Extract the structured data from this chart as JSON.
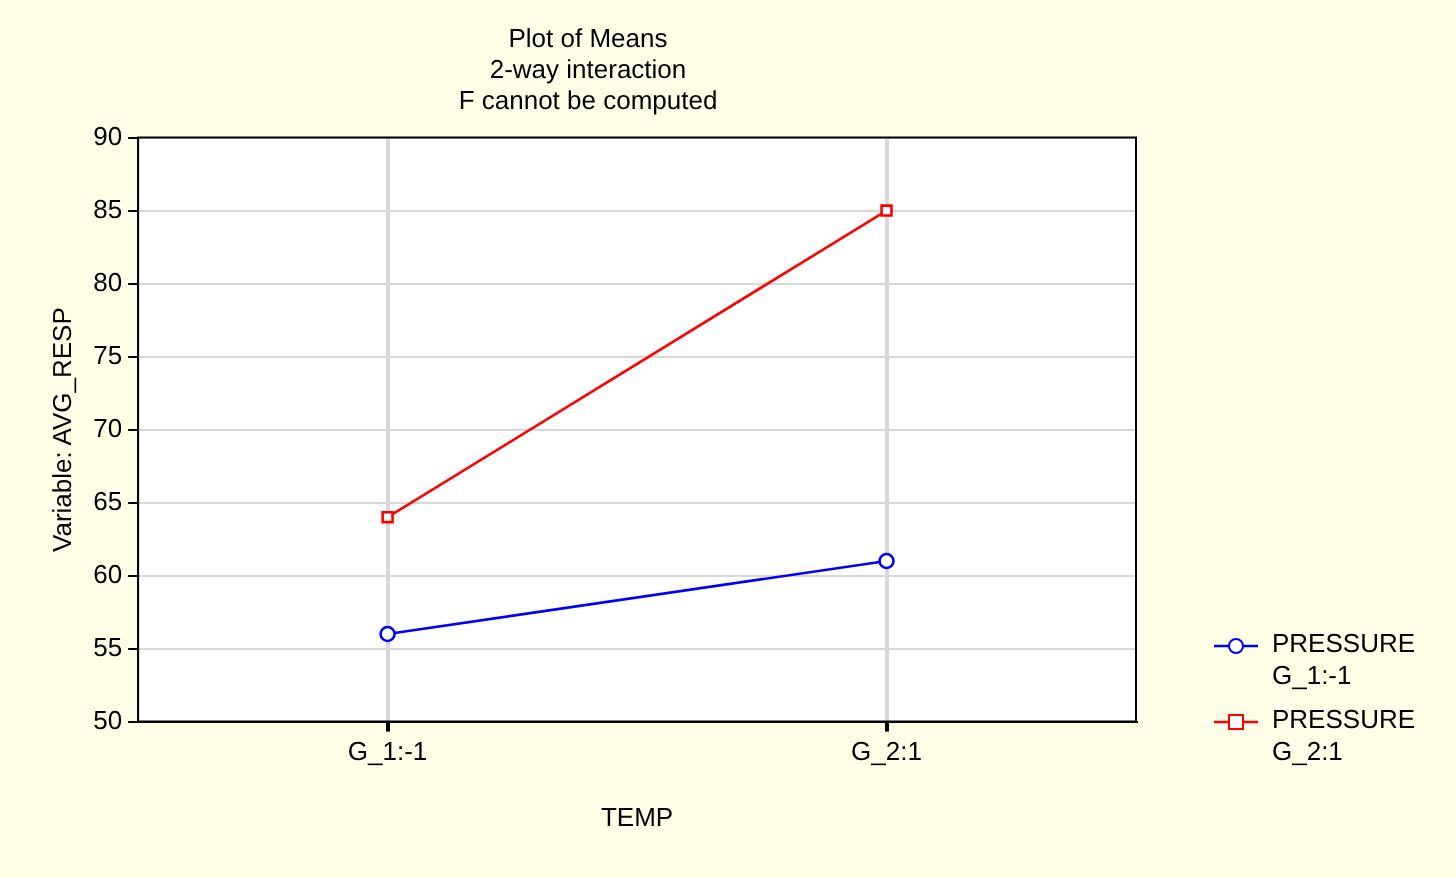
{
  "chart_data": {
    "type": "line",
    "title": "Plot of Means",
    "subtitle": "2-way interaction",
    "annotations": [
      "F cannot be computed"
    ],
    "xlabel": "TEMP",
    "ylabel": "Variable: AVG_RESP",
    "categories": [
      "G_1:-1",
      "G_2:1"
    ],
    "series": [
      {
        "name": "PRESSURE G_1:-1",
        "color": "#0000ff",
        "marker": "circle",
        "values": [
          56,
          61
        ]
      },
      {
        "name": "PRESSURE G_2:1",
        "color": "#ff0000",
        "marker": "square",
        "values": [
          64,
          85
        ]
      }
    ],
    "ylim": [
      50,
      90
    ],
    "yticks": [
      50,
      55,
      60,
      65,
      70,
      75,
      80,
      85,
      90
    ],
    "grid": true,
    "legend": "right",
    "line_style": "solid"
  }
}
